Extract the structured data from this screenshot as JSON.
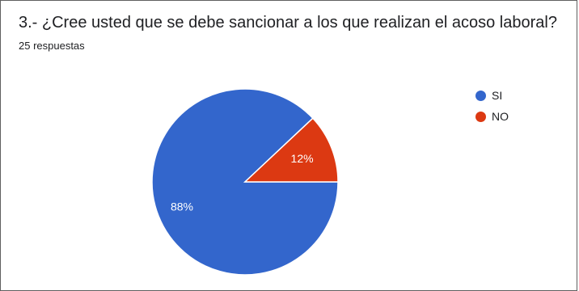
{
  "header": {
    "title": "3.- ¿Cree usted que se debe sancionar a los que realizan el acoso laboral?",
    "subtitle": "25 respuestas"
  },
  "colors": {
    "si": "#3366cc",
    "no": "#dc3912"
  },
  "chart_data": {
    "type": "pie",
    "categories": [
      "SI",
      "NO"
    ],
    "values": [
      88,
      12
    ],
    "labels": [
      "88%",
      "12%"
    ],
    "legend_position": "right"
  }
}
